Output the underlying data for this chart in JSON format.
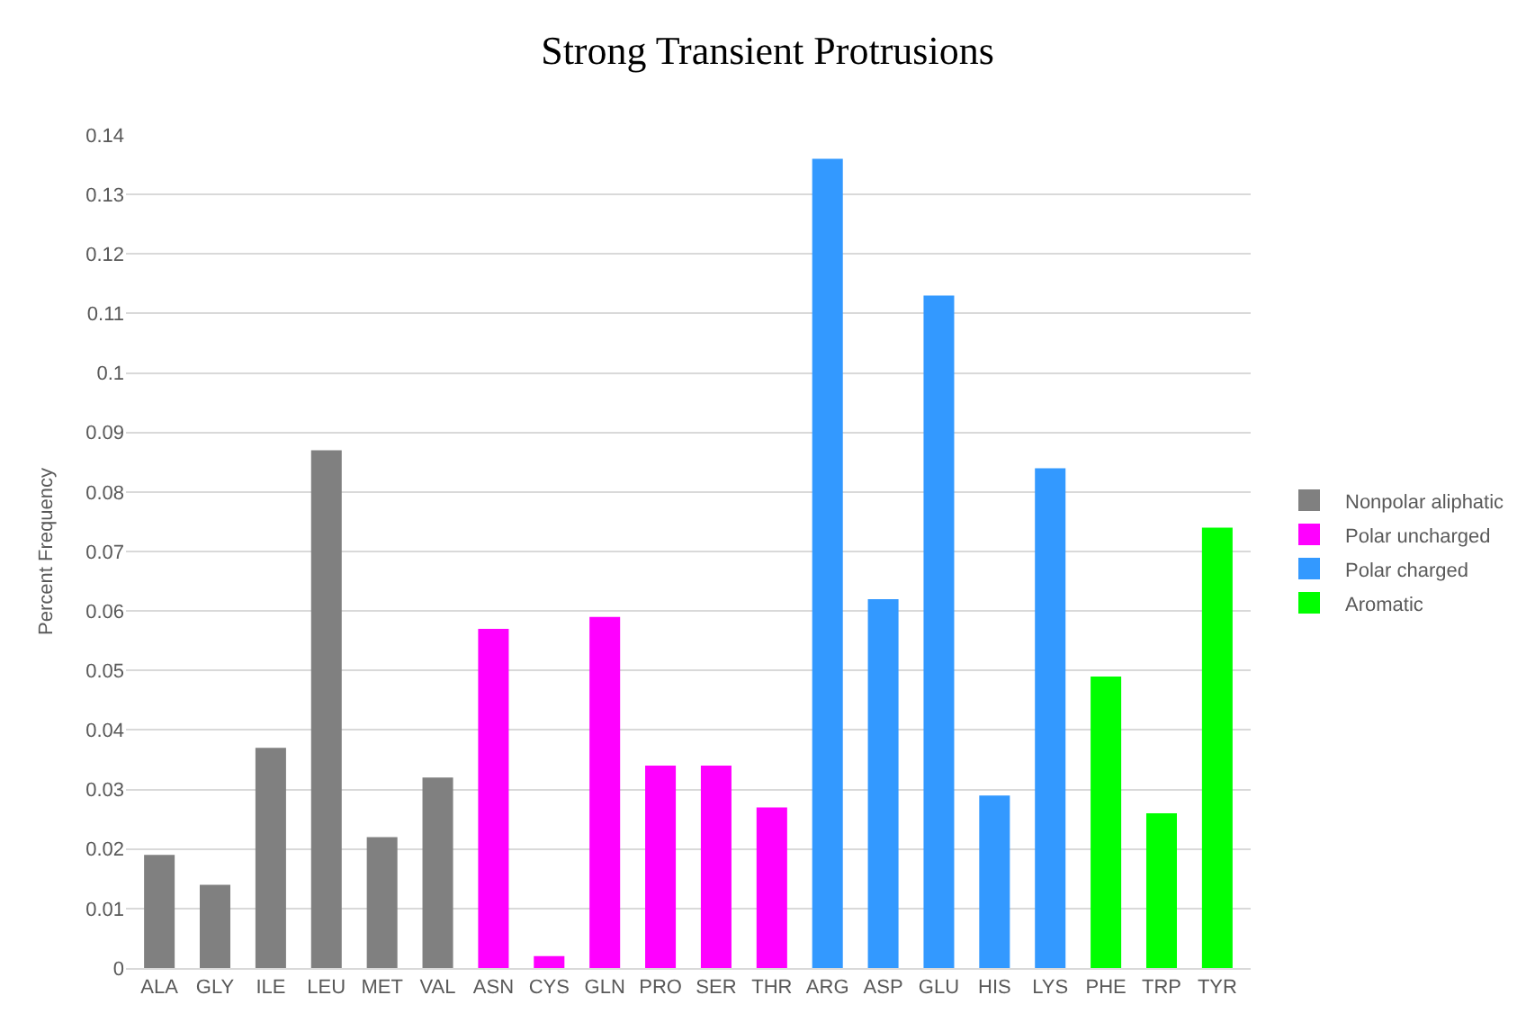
{
  "chart_data": {
    "type": "bar",
    "title": "Strong Transient Protrusions",
    "ylabel": "Percent Frequency",
    "categories": [
      "ALA",
      "GLY",
      "ILE",
      "LEU",
      "MET",
      "VAL",
      "ASN",
      "CYS",
      "GLN",
      "PRO",
      "SER",
      "THR",
      "ARG",
      "ASP",
      "GLU",
      "HIS",
      "LYS",
      "PHE",
      "TRP",
      "TYR"
    ],
    "series": [
      {
        "name": "Nonpolar aliphatic",
        "color": "#808080",
        "values": [
          0.019,
          0.014,
          0.037,
          0.087,
          0.022,
          0.032,
          null,
          null,
          null,
          null,
          null,
          null,
          null,
          null,
          null,
          null,
          null,
          null,
          null,
          null
        ]
      },
      {
        "name": "Polar uncharged",
        "color": "#ff00ff",
        "values": [
          null,
          null,
          null,
          null,
          null,
          null,
          0.057,
          0.002,
          0.059,
          0.034,
          0.034,
          0.027,
          null,
          null,
          null,
          null,
          null,
          null,
          null,
          null
        ]
      },
      {
        "name": "Polar charged",
        "color": "#3399ff",
        "values": [
          null,
          null,
          null,
          null,
          null,
          null,
          null,
          null,
          null,
          null,
          null,
          null,
          0.136,
          0.062,
          0.113,
          0.029,
          0.084,
          null,
          null,
          null
        ]
      },
      {
        "name": "Aromatic",
        "color": "#00ff00",
        "values": [
          null,
          null,
          null,
          null,
          null,
          null,
          null,
          null,
          null,
          null,
          null,
          null,
          null,
          null,
          null,
          null,
          null,
          0.049,
          0.026,
          0.074
        ]
      }
    ],
    "ylim": [
      0,
      0.14
    ],
    "yticks": [
      0,
      0.01,
      0.02,
      0.03,
      0.04,
      0.05,
      0.06,
      0.07,
      0.08,
      0.09,
      0.1,
      0.11,
      0.12,
      0.13,
      0.14
    ],
    "grid": "y",
    "legend": "right"
  }
}
